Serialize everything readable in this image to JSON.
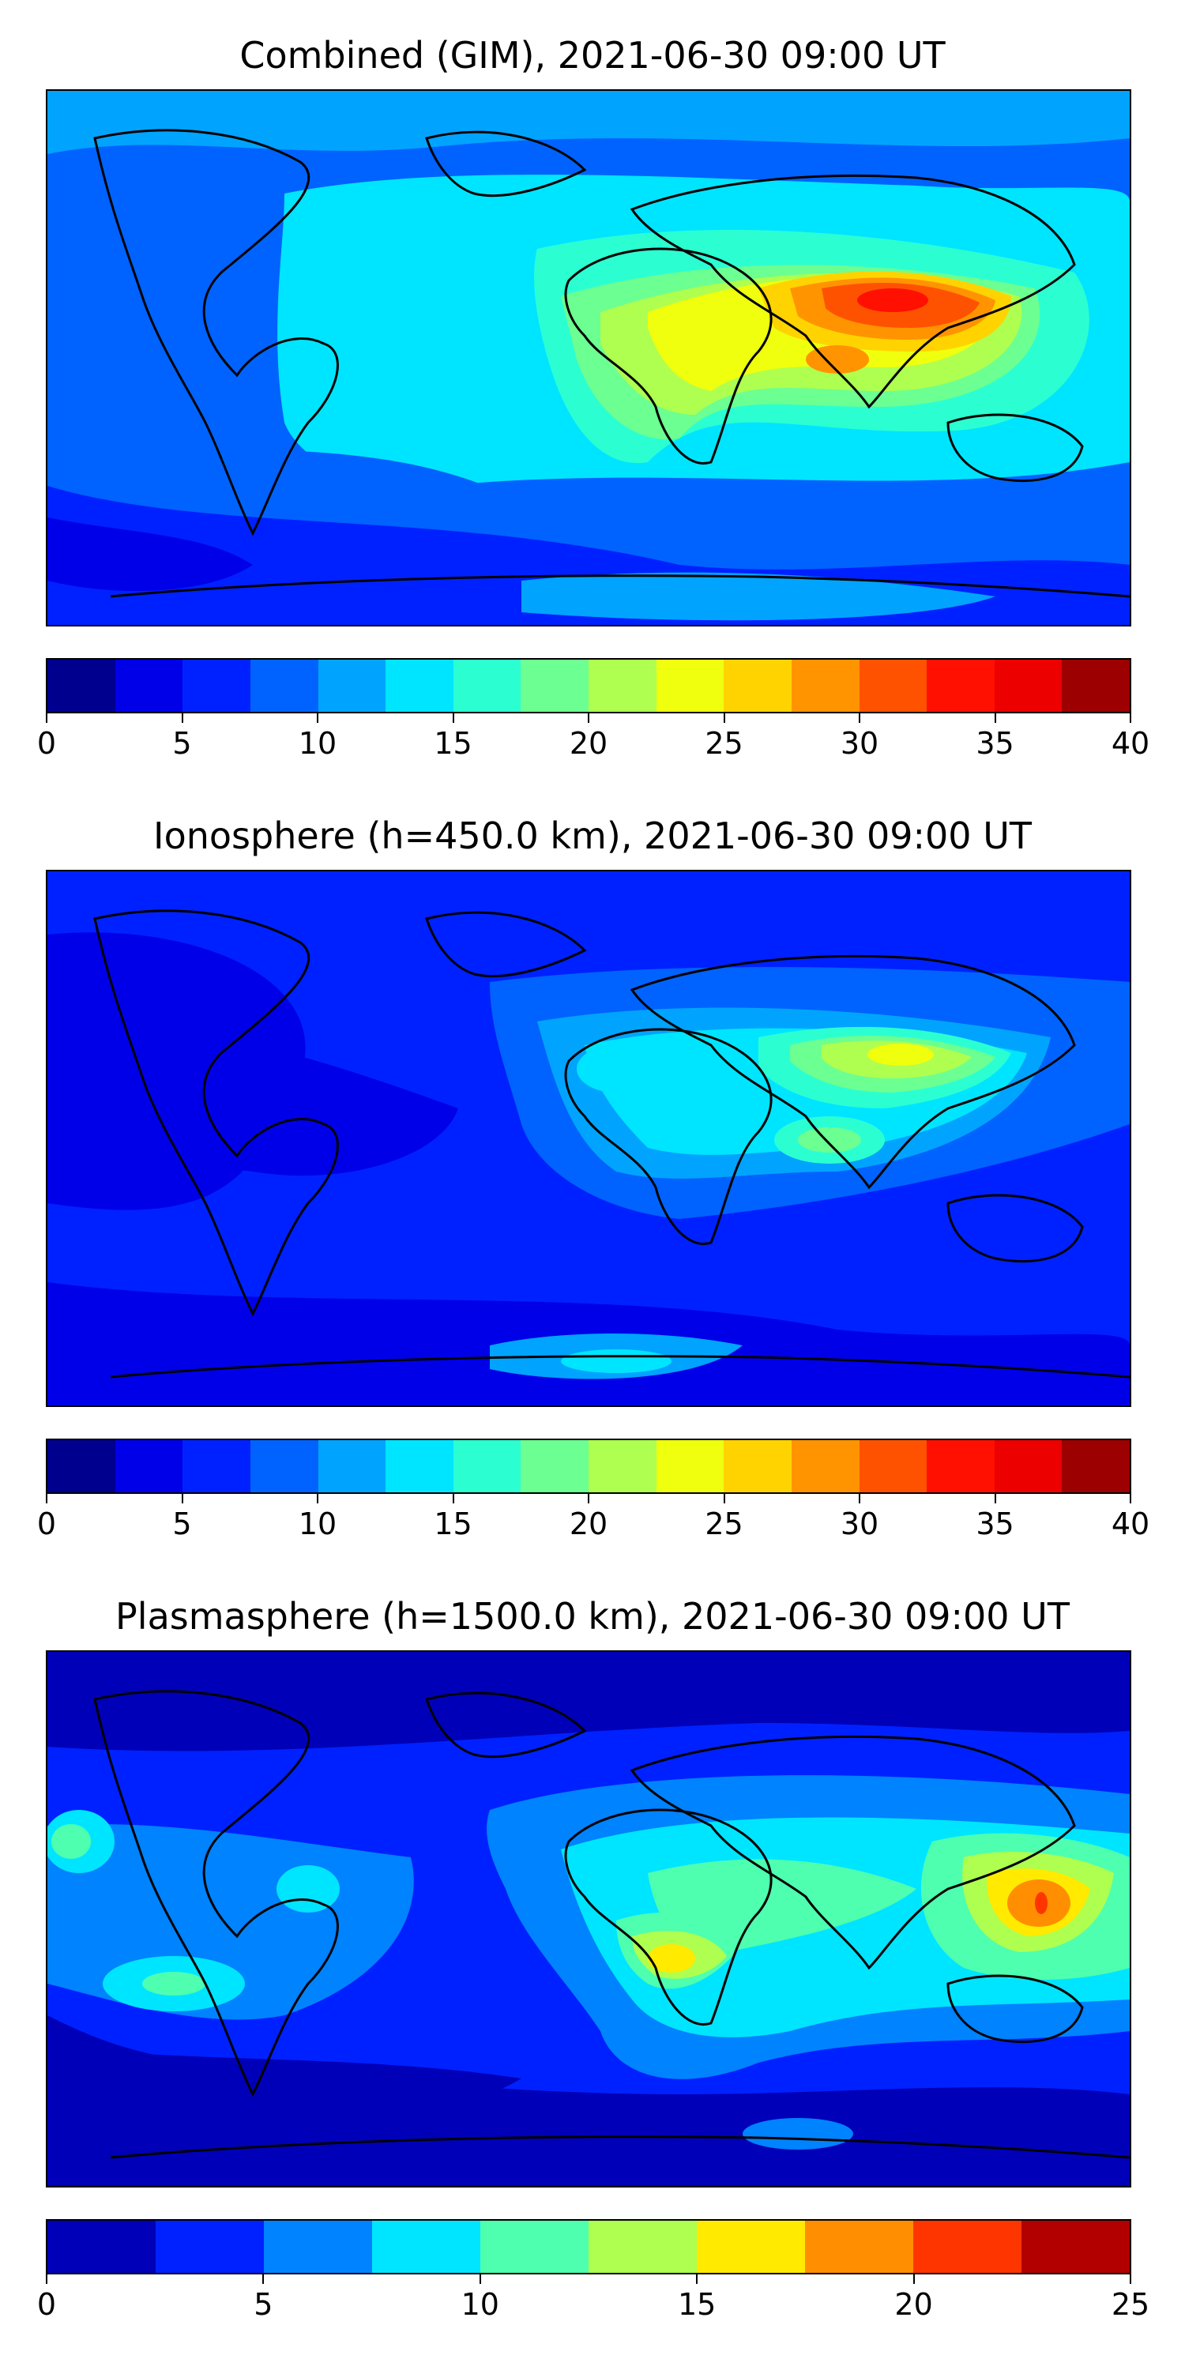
{
  "maps": [
    {
      "title": "Combined (GIM), 2021-06-30 09:00 UT",
      "levels": [
        0,
        2.5,
        5,
        7.5,
        10,
        12.5,
        15,
        17.5,
        20,
        22.5,
        25,
        27.5,
        30,
        32.5,
        35,
        37.5,
        40
      ],
      "colors": [
        "#00008f",
        "#0000e8",
        "#0021ff",
        "#0063ff",
        "#00a4ff",
        "#00e5ff",
        "#2bffd2",
        "#6cff91",
        "#aeff4f",
        "#efff0e",
        "#ffd300",
        "#ff9400",
        "#ff5200",
        "#ff1000",
        "#ed0000",
        "#9c0000"
      ],
      "ticks": [
        "0",
        "5",
        "10",
        "15",
        "20",
        "25",
        "30",
        "35",
        "40"
      ]
    },
    {
      "title": "Ionosphere  (h=450.0 km), 2021-06-30 09:00 UT",
      "levels": [
        0,
        2.5,
        5,
        7.5,
        10,
        12.5,
        15,
        17.5,
        20,
        22.5,
        25,
        27.5,
        30,
        32.5,
        35,
        37.5,
        40
      ],
      "colors": [
        "#00008f",
        "#0000e8",
        "#0021ff",
        "#0063ff",
        "#00a4ff",
        "#00e5ff",
        "#2bffd2",
        "#6cff91",
        "#aeff4f",
        "#efff0e",
        "#ffd300",
        "#ff9400",
        "#ff5200",
        "#ff1000",
        "#ed0000",
        "#9c0000"
      ],
      "ticks": [
        "0",
        "5",
        "10",
        "15",
        "20",
        "25",
        "30",
        "35",
        "40"
      ]
    },
    {
      "title": "Plasmasphere (h=1500.0 km), 2021-06-30 09:00 UT",
      "levels": [
        0,
        2.5,
        5,
        7.5,
        10,
        12.5,
        15,
        17.5,
        20,
        22.5,
        25
      ],
      "colors": [
        "#0000b8",
        "#0021ff",
        "#0083ff",
        "#00e5ff",
        "#4dffaf",
        "#aeff4f",
        "#ffea00",
        "#ff8f00",
        "#ff3500",
        "#b20000"
      ],
      "ticks": [
        "0",
        "5",
        "10",
        "15",
        "20",
        "25"
      ]
    }
  ]
}
